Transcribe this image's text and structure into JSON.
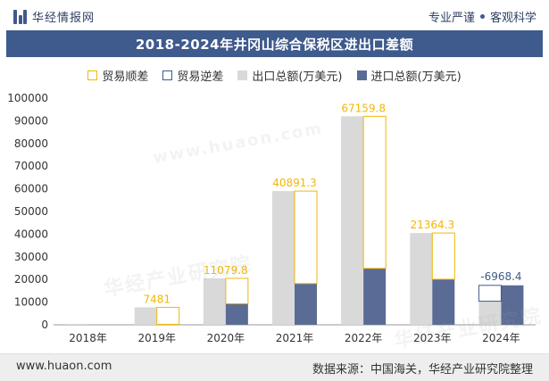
{
  "header": {
    "brand": "华经情报网",
    "tag_left": "专业严谨",
    "tag_right": "客观科学"
  },
  "colors": {
    "export": "#d9d9d9",
    "import": "#5a6b95",
    "surplus": "#f2b705",
    "deficit": "#3f5a8c",
    "title_bg": "#3f5a8c"
  },
  "watermarks": [
    "华经产业研究院",
    "www.huaon.com",
    "华经产业研究院"
  ],
  "footer": {
    "website": "www.huaon.com",
    "source": "数据来源：中国海关，华经产业研究院整理"
  },
  "chart_data": {
    "type": "bar",
    "title": "2018-2024年井冈山综合保税区进出口差额",
    "categories": [
      "2018年",
      "2019年",
      "2020年",
      "2021年",
      "2022年",
      "2023年",
      "2024年"
    ],
    "series": [
      {
        "name": "出口总额(万美元)",
        "values": [
          400,
          7700,
          20500,
          59000,
          92000,
          40500,
          10400
        ]
      },
      {
        "name": "进口总额(万美元)",
        "values": [
          0,
          200,
          9300,
          18200,
          24900,
          20100,
          17400
        ]
      }
    ],
    "balance": {
      "surplus_name": "贸易顺差",
      "deficit_name": "贸易逆差",
      "values": [
        null,
        7481,
        11079.8,
        40891.3,
        67159.8,
        21364.3,
        -6968.4
      ],
      "labels": [
        "",
        "7481",
        "11079.8",
        "40891.3",
        "67159.8",
        "21364.3",
        "-6968.4"
      ]
    },
    "ylim": [
      0,
      100000
    ],
    "yticks": [
      "0",
      "10000",
      "20000",
      "30000",
      "40000",
      "50000",
      "60000",
      "70000",
      "80000",
      "90000",
      "100000"
    ],
    "grid": false,
    "legend": "top"
  }
}
